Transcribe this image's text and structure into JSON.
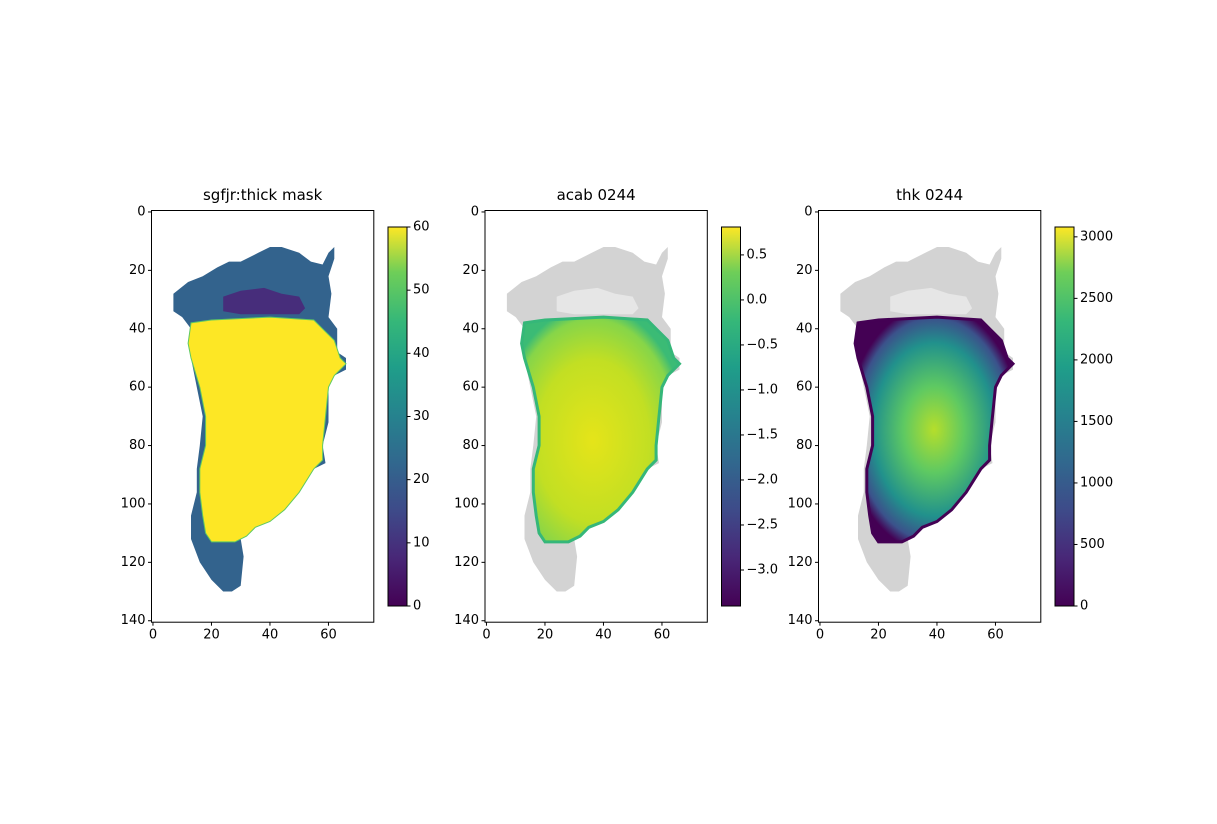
{
  "chart_data": [
    {
      "type": "image",
      "title": "sgfjr:thick mask",
      "kind": "mask",
      "xlim": [
        -0.5,
        75.5
      ],
      "ylim": [
        140.5,
        -0.5
      ],
      "xticks": [
        0,
        20,
        40,
        60
      ],
      "yticks": [
        0,
        20,
        40,
        60,
        80,
        100,
        120,
        140
      ],
      "clim": [
        0,
        60
      ],
      "cticks": [
        0,
        10,
        20,
        30,
        40,
        50,
        60
      ]
    },
    {
      "type": "image",
      "title": "acab 0244",
      "kind": "acab",
      "xlim": [
        -0.5,
        75.5
      ],
      "ylim": [
        140.5,
        -0.5
      ],
      "xticks": [
        0,
        20,
        40,
        60
      ],
      "yticks": [
        0,
        20,
        40,
        60,
        80,
        100,
        120,
        140
      ],
      "clim": [
        -3.4,
        0.81
      ],
      "cticks": [
        {
          "value": -3.0,
          "label": "−3.0"
        },
        {
          "value": -2.5,
          "label": "−2.5"
        },
        {
          "value": -2.0,
          "label": "−2.0"
        },
        {
          "value": -1.5,
          "label": "−1.5"
        },
        {
          "value": -1.0,
          "label": "−1.0"
        },
        {
          "value": -0.5,
          "label": "−0.5"
        },
        {
          "value": 0,
          "label": "0.0"
        },
        0.5
      ]
    },
    {
      "type": "image",
      "title": "thk 0244",
      "kind": "thk",
      "xlim": [
        -0.5,
        75.5
      ],
      "ylim": [
        140.5,
        -0.5
      ],
      "xticks": [
        0,
        20,
        40,
        60
      ],
      "yticks": [
        0,
        20,
        40,
        60,
        80,
        100,
        120,
        140
      ],
      "clim": [
        0,
        3080
      ],
      "cticks": [
        0,
        500,
        1000,
        1500,
        2000,
        2500,
        3000
      ]
    }
  ]
}
